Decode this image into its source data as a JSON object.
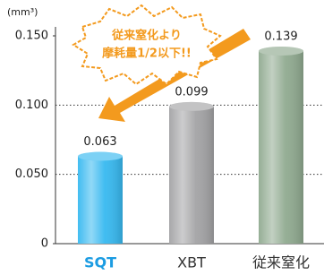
{
  "chart_data": {
    "type": "bar",
    "unit_label": "(mm³)",
    "annotation": [
      "従来窒化より",
      "摩耗量1/2以下!!"
    ],
    "categories": [
      "SQT",
      "XBT",
      "従来窒化"
    ],
    "category_label_colors": [
      "#1c9ce2",
      "#333333",
      "#333333"
    ],
    "values": [
      0.063,
      0.099,
      0.139
    ],
    "colors": [
      "#37b9f0",
      "#a3a3a5",
      "#90aa90"
    ],
    "ylim": [
      0,
      0.15
    ],
    "yticks": [
      {
        "value": 0,
        "label": "0"
      },
      {
        "value": 0.05,
        "label": "0.050"
      },
      {
        "value": 0.1,
        "label": "0.100"
      },
      {
        "value": 0.15,
        "label": "0.150"
      }
    ],
    "grid": true,
    "accent_color": "#f39a1e"
  }
}
